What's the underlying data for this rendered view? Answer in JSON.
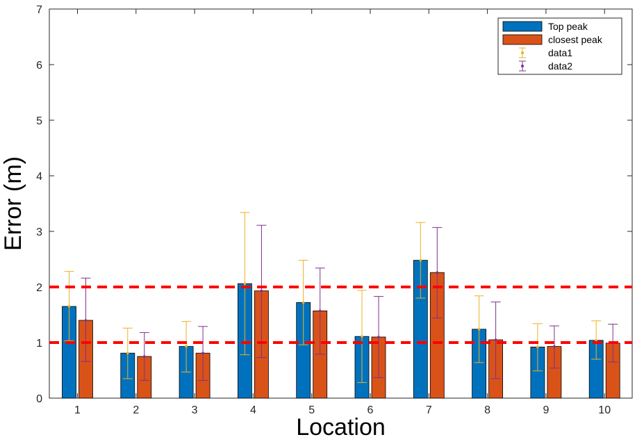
{
  "chart_data": {
    "type": "bar",
    "title": "",
    "xlabel": "Location",
    "ylabel": "Error (m)",
    "categories": [
      "1",
      "2",
      "3",
      "4",
      "5",
      "6",
      "7",
      "8",
      "9",
      "10"
    ],
    "ylim": [
      0,
      7
    ],
    "yticks": [
      "0",
      "1",
      "2",
      "3",
      "4",
      "5",
      "6",
      "7"
    ],
    "grid": false,
    "legend_position": "top-right",
    "series": [
      {
        "name": "Top peak",
        "color": "#0072BD",
        "values": [
          1.65,
          0.81,
          0.93,
          2.06,
          1.72,
          1.11,
          2.48,
          1.24,
          0.92,
          1.04
        ]
      },
      {
        "name": "closest peak",
        "color": "#D95319",
        "values": [
          1.4,
          0.75,
          0.81,
          1.93,
          1.57,
          1.1,
          2.26,
          1.05,
          0.93,
          0.99
        ]
      }
    ],
    "errorbars": [
      {
        "name": "data1",
        "color": "#EDB120",
        "series": "Top peak",
        "low": [
          1.03,
          0.35,
          0.47,
          0.78,
          0.96,
          0.28,
          1.8,
          0.64,
          0.49,
          0.7
        ],
        "high": [
          2.28,
          1.26,
          1.38,
          3.34,
          2.48,
          1.94,
          3.16,
          1.84,
          1.34,
          1.39
        ]
      },
      {
        "name": "data2",
        "color": "#7E2F8E",
        "series": "closest peak",
        "low": [
          0.66,
          0.32,
          0.32,
          0.73,
          0.79,
          0.37,
          1.44,
          0.35,
          0.54,
          0.65
        ],
        "high": [
          2.16,
          1.18,
          1.29,
          3.11,
          2.34,
          1.83,
          3.07,
          1.73,
          1.3,
          1.33
        ]
      }
    ],
    "reference_lines": [
      {
        "y": 1,
        "color": "#FF0000",
        "style": "dashed"
      },
      {
        "y": 2,
        "color": "#FF0000",
        "style": "dashed"
      }
    ]
  }
}
